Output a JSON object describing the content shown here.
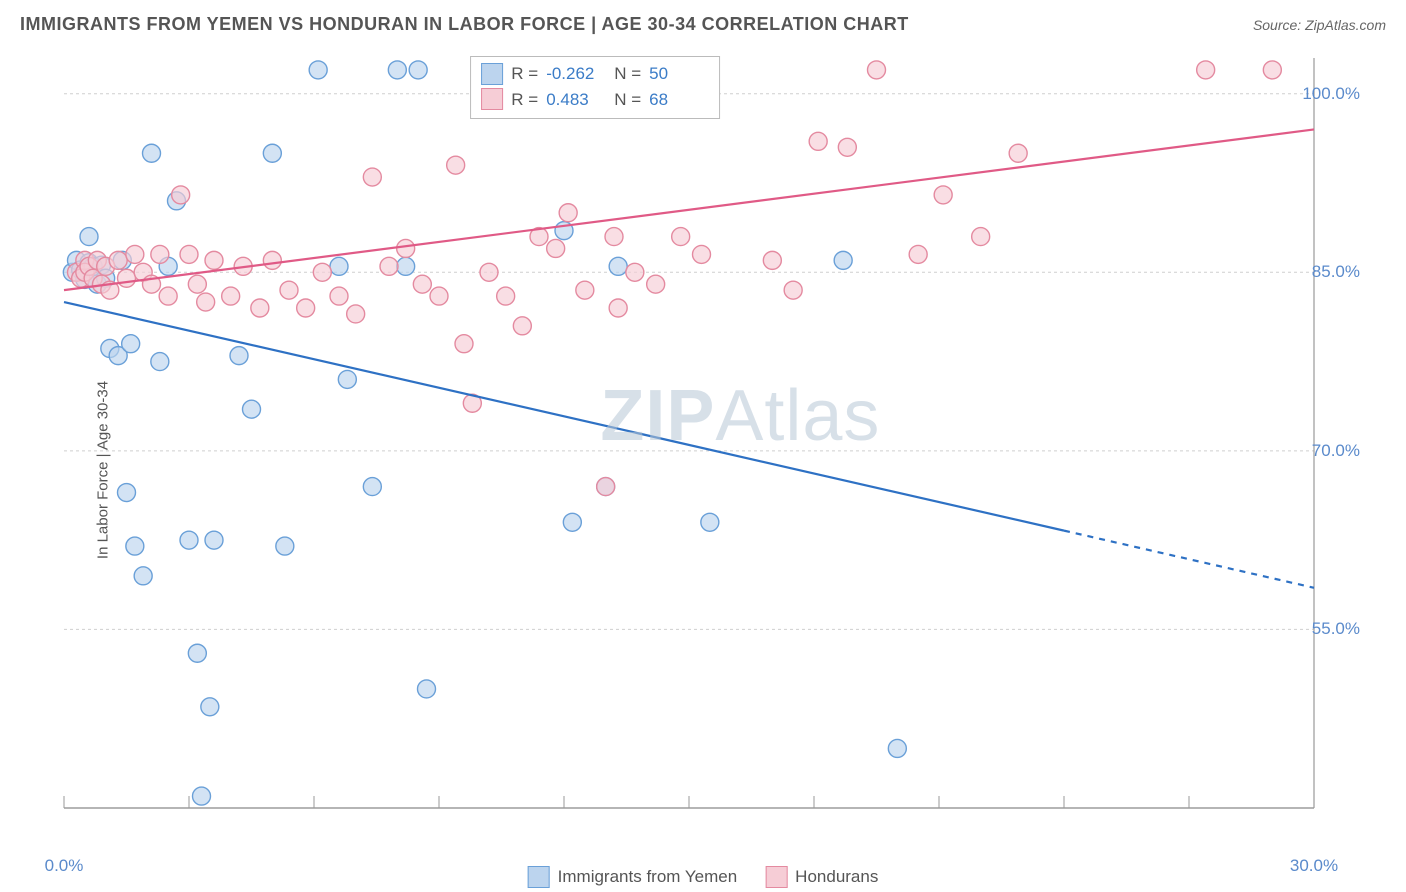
{
  "title": "IMMIGRANTS FROM YEMEN VS HONDURAN IN LABOR FORCE | AGE 30-34 CORRELATION CHART",
  "source_label": "Source: ZipAtlas.com",
  "ylabel": "In Labor Force | Age 30-34",
  "watermark_a": "ZIP",
  "watermark_b": "Atlas",
  "chart": {
    "type": "scatter+trend",
    "xlim": [
      0.0,
      30.0
    ],
    "ylim": [
      40.0,
      103.0
    ],
    "xticks": [
      0.0,
      30.0
    ],
    "yticks": [
      55.0,
      70.0,
      85.0,
      100.0
    ],
    "xtick_fmt": "{v}.0%",
    "ytick_fmt": "{v}.0%",
    "grid_color": "#cfcfcf",
    "grid_dash": "3,3",
    "axis_color": "#999999",
    "background": "#ffffff",
    "marker_radius": 9,
    "marker_stroke_width": 1.4,
    "trend_stroke_width": 2.2,
    "series": [
      {
        "key": "yemen",
        "label": "Immigrants from Yemen",
        "color_fill": "#bcd4ee",
        "color_stroke": "#6aa0d8",
        "trend_color": "#2e71c4",
        "R": -0.262,
        "N": 50,
        "trend": {
          "x0": 0.0,
          "y0": 82.5,
          "x1": 30.0,
          "y1": 58.5,
          "solid_until_x": 24.0
        },
        "points": [
          [
            0.2,
            85.0
          ],
          [
            0.3,
            86.0
          ],
          [
            0.4,
            85.2
          ],
          [
            0.5,
            84.4
          ],
          [
            0.6,
            85.8
          ],
          [
            0.6,
            88.0
          ],
          [
            0.7,
            85.5
          ],
          [
            0.8,
            84.0
          ],
          [
            0.9,
            85.6
          ],
          [
            1.0,
            84.5
          ],
          [
            1.1,
            78.6
          ],
          [
            1.3,
            78.0
          ],
          [
            1.4,
            86.0
          ],
          [
            1.5,
            66.5
          ],
          [
            1.6,
            79.0
          ],
          [
            1.7,
            62.0
          ],
          [
            1.9,
            59.5
          ],
          [
            2.1,
            95.0
          ],
          [
            2.3,
            77.5
          ],
          [
            2.5,
            85.5
          ],
          [
            2.7,
            91.0
          ],
          [
            3.0,
            62.5
          ],
          [
            3.2,
            53.0
          ],
          [
            3.3,
            41.0
          ],
          [
            3.5,
            48.5
          ],
          [
            3.6,
            62.5
          ],
          [
            4.2,
            78.0
          ],
          [
            4.5,
            73.5
          ],
          [
            5.0,
            95.0
          ],
          [
            5.3,
            62.0
          ],
          [
            6.1,
            102.0
          ],
          [
            6.6,
            85.5
          ],
          [
            6.8,
            76.0
          ],
          [
            7.4,
            67.0
          ],
          [
            8.0,
            102.0
          ],
          [
            8.2,
            85.5
          ],
          [
            8.5,
            102.0
          ],
          [
            8.7,
            50.0
          ],
          [
            10.1,
            102.0
          ],
          [
            12.0,
            88.5
          ],
          [
            12.2,
            64.0
          ],
          [
            13.0,
            67.0
          ],
          [
            13.3,
            85.5
          ],
          [
            15.5,
            64.0
          ],
          [
            18.7,
            86.0
          ],
          [
            20.0,
            45.0
          ]
        ]
      },
      {
        "key": "honduran",
        "label": "Hondurans",
        "color_fill": "#f6cdd6",
        "color_stroke": "#e48aa0",
        "trend_color": "#e05a86",
        "R": 0.483,
        "N": 68,
        "trend": {
          "x0": 0.0,
          "y0": 83.5,
          "x1": 30.0,
          "y1": 97.0,
          "solid_until_x": 30.0
        },
        "points": [
          [
            0.3,
            85.0
          ],
          [
            0.4,
            84.5
          ],
          [
            0.5,
            86.0
          ],
          [
            0.5,
            85.0
          ],
          [
            0.6,
            85.5
          ],
          [
            0.7,
            84.5
          ],
          [
            0.8,
            86.0
          ],
          [
            0.9,
            84.0
          ],
          [
            1.0,
            85.5
          ],
          [
            1.1,
            83.5
          ],
          [
            1.3,
            86.0
          ],
          [
            1.5,
            84.5
          ],
          [
            1.7,
            86.5
          ],
          [
            1.9,
            85.0
          ],
          [
            2.1,
            84.0
          ],
          [
            2.3,
            86.5
          ],
          [
            2.5,
            83.0
          ],
          [
            2.8,
            91.5
          ],
          [
            3.0,
            86.5
          ],
          [
            3.2,
            84.0
          ],
          [
            3.4,
            82.5
          ],
          [
            3.6,
            86.0
          ],
          [
            4.0,
            83.0
          ],
          [
            4.3,
            85.5
          ],
          [
            4.7,
            82.0
          ],
          [
            5.0,
            86.0
          ],
          [
            5.4,
            83.5
          ],
          [
            5.8,
            82.0
          ],
          [
            6.2,
            85.0
          ],
          [
            6.6,
            83.0
          ],
          [
            7.0,
            81.5
          ],
          [
            7.4,
            93.0
          ],
          [
            7.8,
            85.5
          ],
          [
            8.2,
            87.0
          ],
          [
            8.6,
            84.0
          ],
          [
            9.0,
            83.0
          ],
          [
            9.4,
            94.0
          ],
          [
            9.6,
            79.0
          ],
          [
            9.8,
            74.0
          ],
          [
            10.2,
            85.0
          ],
          [
            10.6,
            83.0
          ],
          [
            11.0,
            80.5
          ],
          [
            11.4,
            88.0
          ],
          [
            11.8,
            87.0
          ],
          [
            12.1,
            90.0
          ],
          [
            12.5,
            83.5
          ],
          [
            13.0,
            67.0
          ],
          [
            13.2,
            88.0
          ],
          [
            13.3,
            82.0
          ],
          [
            13.7,
            85.0
          ],
          [
            14.2,
            84.0
          ],
          [
            14.8,
            88.0
          ],
          [
            15.3,
            86.5
          ],
          [
            17.0,
            86.0
          ],
          [
            17.5,
            83.5
          ],
          [
            18.1,
            96.0
          ],
          [
            18.8,
            95.5
          ],
          [
            19.5,
            102.0
          ],
          [
            20.5,
            86.5
          ],
          [
            21.1,
            91.5
          ],
          [
            22.0,
            88.0
          ],
          [
            22.9,
            95.0
          ],
          [
            27.4,
            102.0
          ],
          [
            29.0,
            102.0
          ]
        ]
      }
    ]
  },
  "stats_box": {
    "rows": [
      {
        "series": "yemen",
        "R_label": "R =",
        "R": "-0.262",
        "N_label": "N =",
        "N": "50"
      },
      {
        "series": "honduran",
        "R_label": "R =",
        "R": "0.483",
        "N_label": "N =",
        "N": "68"
      }
    ]
  }
}
